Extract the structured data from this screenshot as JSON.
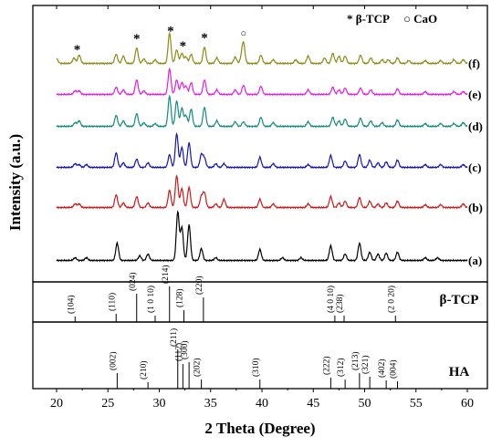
{
  "chart_data": {
    "type": "line",
    "xlabel": "2 Theta (Degree)",
    "ylabel": "Intensity (a.u.)",
    "xlim": [
      20,
      60
    ],
    "x_ticks": [
      "20",
      "25",
      "30",
      "35",
      "40",
      "45",
      "50",
      "55",
      "60"
    ],
    "legend": {
      "position": "top-right",
      "entries": [
        {
          "marker": "*",
          "label": "β-TCP"
        },
        {
          "marker": "○",
          "label": "CaO"
        }
      ]
    },
    "series": [
      {
        "name": "(f)",
        "color": "#8c8a18",
        "peaks": [
          [
            20.0,
            5
          ],
          [
            21.7,
            6
          ],
          [
            22.2,
            9
          ],
          [
            25.8,
            10
          ],
          [
            26.5,
            8
          ],
          [
            27.8,
            17
          ],
          [
            28.5,
            5
          ],
          [
            29.6,
            4
          ],
          [
            31.0,
            33
          ],
          [
            31.7,
            15
          ],
          [
            32.2,
            11
          ],
          [
            32.6,
            7
          ],
          [
            33.1,
            10
          ],
          [
            34.4,
            18
          ],
          [
            35.6,
            6
          ],
          [
            37.4,
            7
          ],
          [
            38.0,
            5
          ],
          [
            38.2,
            22
          ],
          [
            39.9,
            9
          ],
          [
            41.1,
            4
          ],
          [
            43.3,
            4
          ],
          [
            44.5,
            8
          ],
          [
            46.1,
            6
          ],
          [
            46.9,
            11
          ],
          [
            47.5,
            8
          ],
          [
            48.1,
            8
          ],
          [
            49.6,
            9
          ],
          [
            50.6,
            6
          ],
          [
            51.7,
            4
          ],
          [
            52.3,
            4
          ],
          [
            53.2,
            6
          ],
          [
            54.3,
            3
          ],
          [
            55.9,
            3
          ],
          [
            57.4,
            3
          ],
          [
            58.7,
            4
          ],
          [
            59.6,
            4
          ]
        ],
        "annotations": [
          {
            "x": 22.0,
            "marker": "*"
          },
          {
            "x": 27.8,
            "marker": "*"
          },
          {
            "x": 31.1,
            "marker": "*"
          },
          {
            "x": 32.3,
            "marker": "*"
          },
          {
            "x": 34.4,
            "marker": "*"
          },
          {
            "x": 38.2,
            "marker": "○"
          }
        ]
      },
      {
        "name": "(e)",
        "color": "#e020e0",
        "peaks": [
          [
            21.8,
            4
          ],
          [
            22.2,
            4
          ],
          [
            25.8,
            8
          ],
          [
            26.5,
            5
          ],
          [
            27.8,
            16
          ],
          [
            28.5,
            4
          ],
          [
            31.0,
            28
          ],
          [
            31.7,
            16
          ],
          [
            32.2,
            13
          ],
          [
            32.6,
            9
          ],
          [
            33.1,
            13
          ],
          [
            34.4,
            16
          ],
          [
            35.6,
            5
          ],
          [
            37.4,
            5
          ],
          [
            38.2,
            10
          ],
          [
            39.9,
            9
          ],
          [
            44.5,
            5
          ],
          [
            46.9,
            8
          ],
          [
            47.5,
            5
          ],
          [
            48.1,
            7
          ],
          [
            49.6,
            7
          ],
          [
            50.6,
            5
          ],
          [
            53.2,
            6
          ],
          [
            55.9,
            3
          ],
          [
            58.7,
            3
          ],
          [
            59.6,
            3
          ]
        ]
      },
      {
        "name": "(d)",
        "color": "#158a80",
        "peaks": [
          [
            21.8,
            4
          ],
          [
            22.2,
            6
          ],
          [
            25.8,
            12
          ],
          [
            26.5,
            6
          ],
          [
            27.8,
            14
          ],
          [
            28.5,
            4
          ],
          [
            29.6,
            3
          ],
          [
            31.0,
            33
          ],
          [
            31.7,
            28
          ],
          [
            32.2,
            20
          ],
          [
            32.6,
            12
          ],
          [
            33.1,
            19
          ],
          [
            34.4,
            21
          ],
          [
            35.6,
            6
          ],
          [
            37.4,
            5
          ],
          [
            38.2,
            5
          ],
          [
            39.9,
            10
          ],
          [
            41.1,
            4
          ],
          [
            44.5,
            5
          ],
          [
            46.9,
            10
          ],
          [
            47.5,
            6
          ],
          [
            48.1,
            8
          ],
          [
            49.6,
            9
          ],
          [
            50.6,
            6
          ],
          [
            51.7,
            4
          ],
          [
            53.2,
            7
          ],
          [
            55.9,
            3
          ],
          [
            57.4,
            3
          ],
          [
            58.7,
            3
          ],
          [
            59.6,
            4
          ]
        ]
      },
      {
        "name": "(c)",
        "color": "#1515b0",
        "peaks": [
          [
            21.8,
            4
          ],
          [
            22.2,
            3
          ],
          [
            22.9,
            3
          ],
          [
            25.8,
            16
          ],
          [
            26.5,
            5
          ],
          [
            27.8,
            9
          ],
          [
            28.9,
            5
          ],
          [
            31.0,
            14
          ],
          [
            31.7,
            37
          ],
          [
            32.2,
            22
          ],
          [
            32.9,
            27
          ],
          [
            34.1,
            14
          ],
          [
            34.4,
            10
          ],
          [
            35.5,
            4
          ],
          [
            36.3,
            4
          ],
          [
            39.8,
            11
          ],
          [
            41.1,
            4
          ],
          [
            44.5,
            3
          ],
          [
            46.7,
            13
          ],
          [
            48.1,
            7
          ],
          [
            49.5,
            14
          ],
          [
            50.5,
            8
          ],
          [
            51.3,
            5
          ],
          [
            52.1,
            6
          ],
          [
            53.2,
            8
          ],
          [
            55.9,
            3
          ],
          [
            57.4,
            3
          ],
          [
            59.6,
            3
          ]
        ]
      },
      {
        "name": "(b)",
        "color": "#cc1a1a",
        "peaks": [
          [
            21.8,
            4
          ],
          [
            22.2,
            4
          ],
          [
            25.8,
            14
          ],
          [
            26.5,
            5
          ],
          [
            27.8,
            12
          ],
          [
            28.9,
            5
          ],
          [
            31.0,
            19
          ],
          [
            31.7,
            35
          ],
          [
            32.2,
            21
          ],
          [
            32.9,
            22
          ],
          [
            34.1,
            12
          ],
          [
            34.4,
            16
          ],
          [
            35.5,
            4
          ],
          [
            36.3,
            9
          ],
          [
            39.8,
            9
          ],
          [
            41.1,
            4
          ],
          [
            44.5,
            4
          ],
          [
            46.7,
            12
          ],
          [
            47.5,
            5
          ],
          [
            48.1,
            7
          ],
          [
            49.5,
            11
          ],
          [
            50.5,
            7
          ],
          [
            51.3,
            4
          ],
          [
            52.1,
            5
          ],
          [
            53.2,
            7
          ],
          [
            55.9,
            3
          ],
          [
            57.4,
            3
          ],
          [
            59.6,
            4
          ]
        ]
      },
      {
        "name": "(a)",
        "color": "#000000",
        "peaks": [
          [
            21.8,
            3
          ],
          [
            22.9,
            3
          ],
          [
            25.9,
            19
          ],
          [
            28.1,
            5
          ],
          [
            28.9,
            7
          ],
          [
            31.8,
            53
          ],
          [
            32.2,
            36
          ],
          [
            32.9,
            39
          ],
          [
            34.1,
            13
          ],
          [
            35.5,
            3
          ],
          [
            39.8,
            12
          ],
          [
            42.0,
            3
          ],
          [
            43.8,
            3
          ],
          [
            46.7,
            16
          ],
          [
            48.1,
            7
          ],
          [
            49.5,
            19
          ],
          [
            50.5,
            9
          ],
          [
            51.3,
            7
          ],
          [
            52.1,
            8
          ],
          [
            53.2,
            9
          ],
          [
            55.9,
            3
          ],
          [
            57.1,
            3
          ]
        ]
      }
    ],
    "reference_panels": [
      {
        "name": "β-TCP",
        "lines": [
          {
            "x": 21.8,
            "label": "(104)"
          },
          {
            "x": 25.8,
            "label": "(110)"
          },
          {
            "x": 27.8,
            "label": "(024)"
          },
          {
            "x": 29.6,
            "label": "(1 0 10)"
          },
          {
            "x": 31.0,
            "label": "(214)"
          },
          {
            "x": 32.4,
            "label": "(128)"
          },
          {
            "x": 34.3,
            "label": "(220)"
          },
          {
            "x": 47.1,
            "label": "(4 0 10)"
          },
          {
            "x": 48.0,
            "label": "(238)"
          },
          {
            "x": 53.0,
            "label": "(2 0 20)"
          }
        ]
      },
      {
        "name": "HA",
        "lines": [
          {
            "x": 25.9,
            "label": "(002)"
          },
          {
            "x": 28.9,
            "label": "(210)"
          },
          {
            "x": 31.8,
            "label": "(211)"
          },
          {
            "x": 32.3,
            "label": "(112)"
          },
          {
            "x": 32.9,
            "label": "(300)"
          },
          {
            "x": 34.1,
            "label": "(202)"
          },
          {
            "x": 39.8,
            "label": "(310)"
          },
          {
            "x": 46.7,
            "label": "(222)"
          },
          {
            "x": 48.1,
            "label": "(312)"
          },
          {
            "x": 49.5,
            "label": "(213)"
          },
          {
            "x": 50.5,
            "label": "(321)"
          },
          {
            "x": 52.1,
            "label": "(402)"
          },
          {
            "x": 53.2,
            "label": "(004)"
          }
        ]
      }
    ]
  }
}
